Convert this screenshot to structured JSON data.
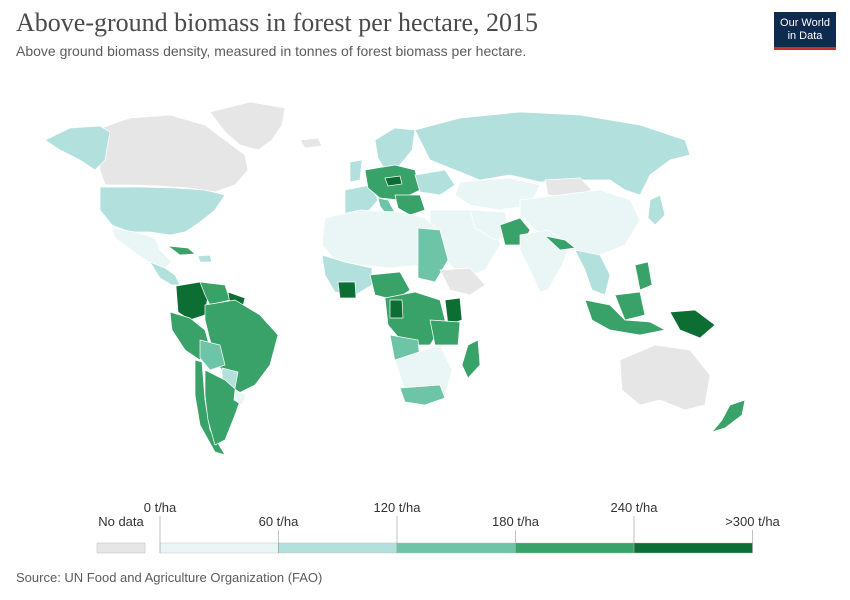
{
  "header": {
    "title": "Above-ground biomass in forest per hectare, 2015",
    "subtitle": "Above ground biomass density, measured in tonnes of forest biomass per hectare."
  },
  "logo": {
    "line1": "Our World",
    "line2": "in Data"
  },
  "legend": {
    "no_data_label": "No data",
    "no_data_color": "#e6e6e6",
    "ticks": [
      "0 t/ha",
      "60 t/ha",
      "120 t/ha",
      "180 t/ha",
      "240 t/ha",
      ">300 t/ha"
    ],
    "colors": [
      "#eaf6f6",
      "#b2e0dc",
      "#6ec4a6",
      "#38a268",
      "#0d6e33"
    ]
  },
  "source": "Source: UN Food and Agriculture Organization (FAO)",
  "colors": {
    "ocean": "#ffffff",
    "border": "#ffffff",
    "tier0": "#eaf6f6",
    "tier1": "#b2e0dc",
    "tier2": "#6ec4a6",
    "tier3": "#38a268",
    "tier4": "#0d6e33",
    "nodata": "#e6e6e6"
  }
}
